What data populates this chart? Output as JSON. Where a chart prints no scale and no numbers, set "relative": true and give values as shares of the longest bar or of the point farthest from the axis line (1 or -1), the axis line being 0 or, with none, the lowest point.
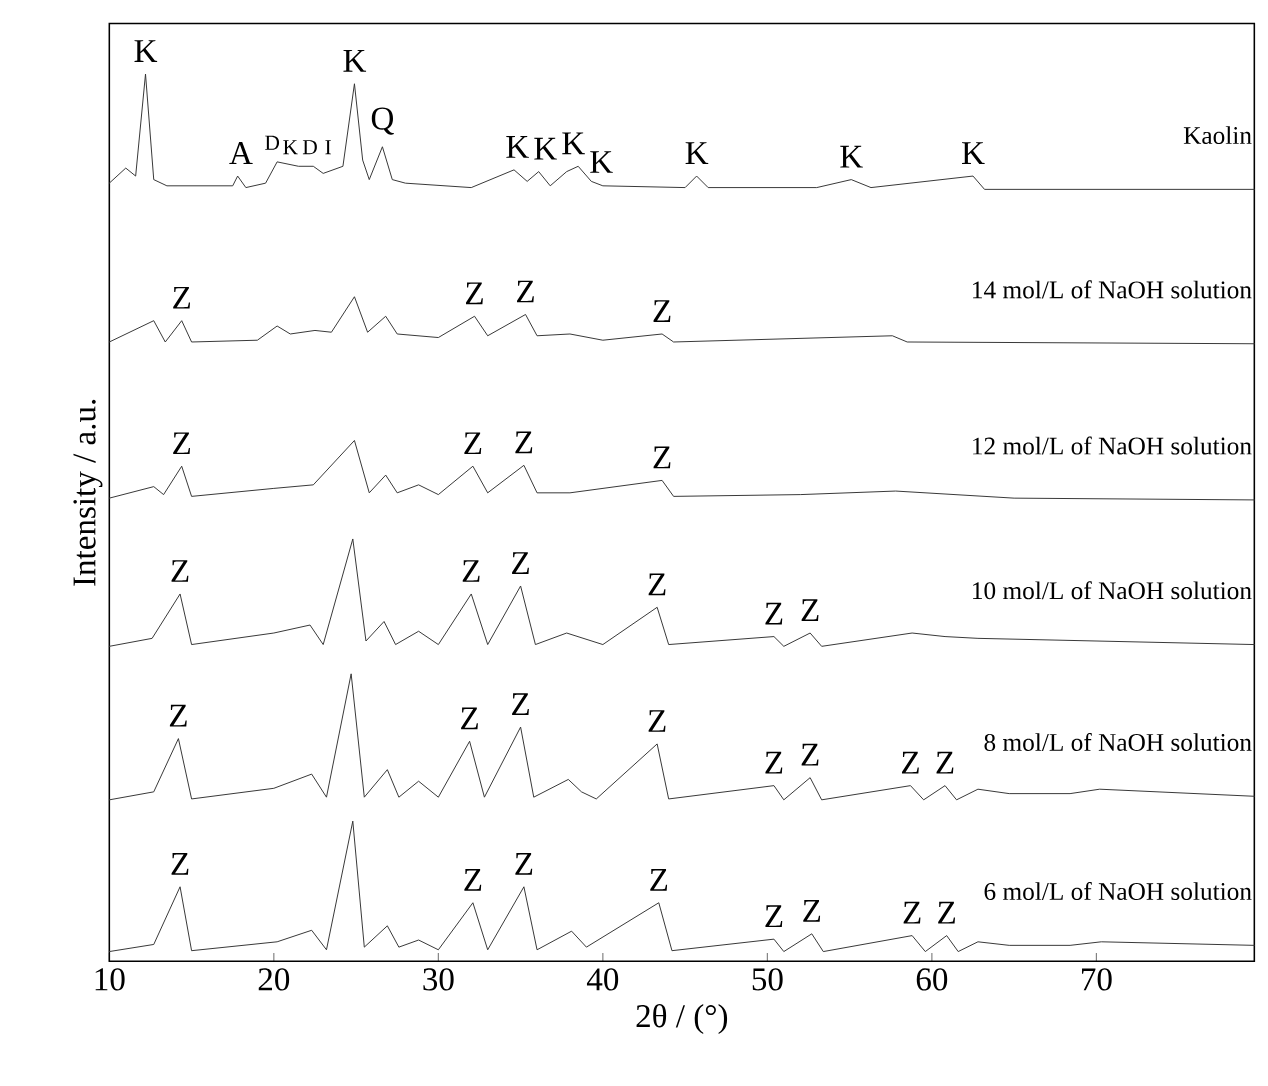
{
  "chart_data": {
    "type": "line",
    "relative": true,
    "xlabel": "2θ / (°)",
    "ylabel": "Intensity / a.u.",
    "xlim": [
      10,
      79.6
    ],
    "xticks": [
      10,
      20,
      30,
      40,
      50,
      60,
      70
    ],
    "tick_labels": "x",
    "series": [
      {
        "name": "Kaolin",
        "color": "#333333",
        "x": [
          10,
          11,
          11.6,
          12.2,
          12.7,
          13.5,
          17.5,
          17.8,
          18.3,
          19.5,
          20.2,
          21.5,
          22.4,
          23,
          24.2,
          24.9,
          25.4,
          25.8,
          26.6,
          27.2,
          28,
          32,
          34.6,
          35.4,
          36.1,
          36.8,
          37.8,
          38.5,
          39.3,
          40,
          45,
          45.7,
          46.4,
          53,
          55.1,
          56.3,
          62.5,
          63.2,
          79.6
        ],
        "values": [
          0.877,
          0.894,
          0.885,
          1.0,
          0.881,
          0.874,
          0.874,
          0.885,
          0.872,
          0.877,
          0.901,
          0.896,
          0.896,
          0.888,
          0.896,
          0.989,
          0.903,
          0.881,
          0.918,
          0.881,
          0.877,
          0.872,
          0.892,
          0.879,
          0.89,
          0.874,
          0.89,
          0.896,
          0.879,
          0.874,
          0.872,
          0.885,
          0.872,
          0.872,
          0.881,
          0.872,
          0.885,
          0.87,
          0.87
        ]
      },
      {
        "name": "14 mol/L of NaOH solution",
        "color": "#333333",
        "x": [
          10,
          12.7,
          13.4,
          14.4,
          15,
          19,
          20.2,
          21,
          22.5,
          23.5,
          24.9,
          25.7,
          26.8,
          27.5,
          30,
          32.2,
          33,
          35.3,
          36,
          38,
          40,
          43.6,
          44.3,
          57.6,
          58.5,
          79.6
        ],
        "values": [
          0.698,
          0.722,
          0.698,
          0.722,
          0.698,
          0.7,
          0.716,
          0.707,
          0.711,
          0.709,
          0.749,
          0.709,
          0.727,
          0.707,
          0.703,
          0.727,
          0.705,
          0.729,
          0.705,
          0.707,
          0.7,
          0.707,
          0.698,
          0.705,
          0.698,
          0.696
        ]
      },
      {
        "name": "12 mol/L of NaOH solution",
        "color": "#333333",
        "x": [
          10,
          12.7,
          13.3,
          14.4,
          15,
          20,
          22.4,
          24.9,
          25.8,
          26.8,
          27.5,
          28.8,
          30,
          32.1,
          33,
          35.2,
          36,
          38,
          43.6,
          44.3,
          52,
          57.8,
          65,
          79.6
        ],
        "values": [
          0.522,
          0.535,
          0.526,
          0.558,
          0.524,
          0.533,
          0.537,
          0.587,
          0.528,
          0.548,
          0.528,
          0.537,
          0.526,
          0.558,
          0.528,
          0.559,
          0.528,
          0.528,
          0.542,
          0.524,
          0.526,
          0.53,
          0.522,
          0.52
        ]
      },
      {
        "name": "10 mol/L of NaOH solution",
        "color": "#333333",
        "x": [
          10,
          12.6,
          14.3,
          15,
          20,
          22.2,
          23,
          24.8,
          25.6,
          26.7,
          27.4,
          28.8,
          30,
          32,
          33,
          35,
          35.9,
          37.8,
          40,
          43.3,
          44,
          50.4,
          51,
          52.6,
          53.3,
          58.8,
          60.8,
          62.8,
          79.6
        ],
        "values": [
          0.355,
          0.364,
          0.414,
          0.357,
          0.37,
          0.379,
          0.357,
          0.476,
          0.361,
          0.383,
          0.357,
          0.372,
          0.357,
          0.414,
          0.357,
          0.423,
          0.357,
          0.37,
          0.357,
          0.399,
          0.357,
          0.366,
          0.355,
          0.37,
          0.355,
          0.37,
          0.366,
          0.364,
          0.357
        ]
      },
      {
        "name": "8 mol/L of NaOH solution",
        "color": "#333333",
        "x": [
          10,
          12.7,
          14.2,
          15,
          20,
          22.3,
          23.2,
          24.7,
          25.5,
          26.9,
          27.6,
          28.8,
          30,
          31.9,
          32.8,
          35,
          35.8,
          37.9,
          38.7,
          39.6,
          43.3,
          44,
          50.4,
          51,
          52.6,
          53.3,
          58.7,
          59.5,
          60.8,
          61.5,
          62.8,
          64.7,
          68.4,
          70.2,
          79.6
        ],
        "values": [
          0.182,
          0.191,
          0.251,
          0.183,
          0.195,
          0.211,
          0.185,
          0.324,
          0.185,
          0.216,
          0.185,
          0.203,
          0.185,
          0.248,
          0.185,
          0.264,
          0.185,
          0.205,
          0.191,
          0.183,
          0.245,
          0.183,
          0.198,
          0.182,
          0.207,
          0.182,
          0.198,
          0.182,
          0.198,
          0.182,
          0.194,
          0.189,
          0.189,
          0.194,
          0.186
        ]
      },
      {
        "name": "6 mol/L of NaOH solution",
        "color": "#333333",
        "x": [
          10,
          12.7,
          14.3,
          15,
          20.2,
          22.3,
          23.2,
          24.8,
          25.5,
          26.9,
          27.6,
          28.8,
          30,
          32.1,
          33,
          35.2,
          36,
          38.1,
          39,
          43.4,
          44.2,
          50.4,
          51,
          52.7,
          53.4,
          58.8,
          59.6,
          60.9,
          61.6,
          62.8,
          64.7,
          68.4,
          70.3,
          79.6
        ],
        "values": [
          0.011,
          0.019,
          0.084,
          0.012,
          0.022,
          0.035,
          0.013,
          0.158,
          0.016,
          0.04,
          0.016,
          0.024,
          0.013,
          0.066,
          0.013,
          0.084,
          0.013,
          0.034,
          0.016,
          0.066,
          0.012,
          0.025,
          0.011,
          0.031,
          0.011,
          0.029,
          0.011,
          0.029,
          0.011,
          0.022,
          0.018,
          0.018,
          0.022,
          0.018
        ]
      }
    ],
    "annotations": [
      {
        "text": "K",
        "x": 12.2,
        "y": 1.0
      },
      {
        "text": "A",
        "x": 18.0,
        "y": 0.885
      },
      {
        "text": "D",
        "x": 19.9,
        "y": 0.901
      },
      {
        "text": "K",
        "x": 21.0,
        "y": 0.896
      },
      {
        "text": "D",
        "x": 22.2,
        "y": 0.896
      },
      {
        "text": "I",
        "x": 23.3,
        "y": 0.896
      },
      {
        "text": "K",
        "x": 24.9,
        "y": 0.989
      },
      {
        "text": "Q",
        "x": 26.6,
        "y": 0.918
      },
      {
        "text": "K",
        "x": 34.8,
        "y": 0.892
      },
      {
        "text": "K",
        "x": 36.5,
        "y": 0.89
      },
      {
        "text": "K",
        "x": 38.2,
        "y": 0.896
      },
      {
        "text": "K",
        "x": 39.9,
        "y": 0.875
      },
      {
        "text": "K",
        "x": 45.7,
        "y": 0.885
      },
      {
        "text": "K",
        "x": 55.1,
        "y": 0.881
      },
      {
        "text": "K",
        "x": 62.5,
        "y": 0.885
      },
      {
        "text": "Z",
        "x": 14.4,
        "y": 0.722
      },
      {
        "text": "Z",
        "x": 32.2,
        "y": 0.727
      },
      {
        "text": "Z",
        "x": 35.3,
        "y": 0.729
      },
      {
        "text": "Z",
        "x": 43.6,
        "y": 0.707
      },
      {
        "text": "Z",
        "x": 14.4,
        "y": 0.558
      },
      {
        "text": "Z",
        "x": 32.1,
        "y": 0.558
      },
      {
        "text": "Z",
        "x": 35.2,
        "y": 0.559
      },
      {
        "text": "Z",
        "x": 43.6,
        "y": 0.542
      },
      {
        "text": "Z",
        "x": 14.3,
        "y": 0.414
      },
      {
        "text": "Z",
        "x": 32,
        "y": 0.414
      },
      {
        "text": "Z",
        "x": 35,
        "y": 0.423
      },
      {
        "text": "Z",
        "x": 43.3,
        "y": 0.399
      },
      {
        "text": "Z",
        "x": 50.4,
        "y": 0.366
      },
      {
        "text": "Z",
        "x": 52.6,
        "y": 0.37
      },
      {
        "text": "Z",
        "x": 14.2,
        "y": 0.251
      },
      {
        "text": "Z",
        "x": 31.9,
        "y": 0.248
      },
      {
        "text": "Z",
        "x": 35,
        "y": 0.264
      },
      {
        "text": "Z",
        "x": 43.3,
        "y": 0.245
      },
      {
        "text": "Z",
        "x": 50.4,
        "y": 0.198
      },
      {
        "text": "Z",
        "x": 52.6,
        "y": 0.207
      },
      {
        "text": "Z",
        "x": 58.7,
        "y": 0.198
      },
      {
        "text": "Z",
        "x": 60.8,
        "y": 0.198
      },
      {
        "text": "Z",
        "x": 14.3,
        "y": 0.084
      },
      {
        "text": "Z",
        "x": 32.1,
        "y": 0.066
      },
      {
        "text": "Z",
        "x": 35.2,
        "y": 0.084
      },
      {
        "text": "Z",
        "x": 43.4,
        "y": 0.066
      },
      {
        "text": "Z",
        "x": 50.4,
        "y": 0.025
      },
      {
        "text": "Z",
        "x": 52.7,
        "y": 0.031
      },
      {
        "text": "Z",
        "x": 58.8,
        "y": 0.029
      },
      {
        "text": "Z",
        "x": 60.9,
        "y": 0.029
      }
    ]
  }
}
